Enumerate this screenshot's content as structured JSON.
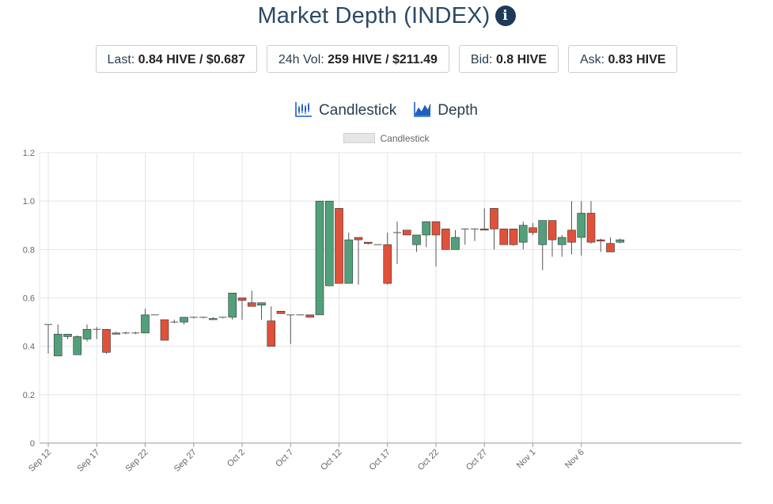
{
  "header": {
    "title": "Market Depth (INDEX)",
    "info_icon": "info-circle-icon"
  },
  "stats": [
    {
      "label": "Last: ",
      "value": "0.84 HIVE / $0.687"
    },
    {
      "label": "24h Vol: ",
      "value": "259 HIVE / $211.49"
    },
    {
      "label": "Bid: ",
      "value": "0.8 HIVE"
    },
    {
      "label": "Ask: ",
      "value": "0.83 HIVE"
    }
  ],
  "tabs": [
    {
      "label": "Candlestick",
      "icon": "candlestick-chart-icon"
    },
    {
      "label": "Depth",
      "icon": "depth-chart-icon"
    }
  ],
  "colors": {
    "up": "#52a07a",
    "down": "#e0513a",
    "grid": "#e5e5e5",
    "wick": "#555555"
  },
  "chart_data": {
    "type": "candlestick",
    "legend": [
      "Candlestick"
    ],
    "legend_position": "top-center",
    "ylim": [
      0,
      1.2
    ],
    "yticks": [
      "0",
      "0.2",
      "0.4",
      "0.6",
      "0.8",
      "1.0",
      "1.2"
    ],
    "xtick_labels": [
      "Sep 12",
      "Sep 17",
      "Sep 22",
      "Sep 27",
      "Oct 2",
      "Oct 7",
      "Oct 12",
      "Oct 17",
      "Oct 22",
      "Oct 27",
      "Nov 1",
      "Nov 6"
    ],
    "grid": true,
    "candles": [
      {
        "date": "Sep 12",
        "open": 0.49,
        "close": 0.49,
        "high": 0.49,
        "low": 0.37
      },
      {
        "date": "Sep 13",
        "open": 0.36,
        "close": 0.45,
        "high": 0.49,
        "low": 0.36
      },
      {
        "date": "Sep 14",
        "open": 0.44,
        "close": 0.45,
        "high": 0.45,
        "low": 0.43
      },
      {
        "date": "Sep 15",
        "open": 0.365,
        "close": 0.44,
        "high": 0.445,
        "low": 0.365
      },
      {
        "date": "Sep 16",
        "open": 0.43,
        "close": 0.47,
        "high": 0.49,
        "low": 0.42
      },
      {
        "date": "Sep 17",
        "open": 0.47,
        "close": 0.47,
        "high": 0.48,
        "low": 0.43
      },
      {
        "date": "Sep 18",
        "open": 0.47,
        "close": 0.375,
        "high": 0.47,
        "low": 0.37
      },
      {
        "date": "Sep 19",
        "open": 0.45,
        "close": 0.455,
        "high": 0.46,
        "low": 0.45
      },
      {
        "date": "Sep 20",
        "open": 0.455,
        "close": 0.455,
        "high": 0.46,
        "low": 0.45
      },
      {
        "date": "Sep 21",
        "open": 0.455,
        "close": 0.455,
        "high": 0.46,
        "low": 0.45
      },
      {
        "date": "Sep 22",
        "open": 0.455,
        "close": 0.53,
        "high": 0.555,
        "low": 0.455
      },
      {
        "date": "Sep 23",
        "open": 0.53,
        "close": 0.53,
        "high": 0.53,
        "low": 0.53
      },
      {
        "date": "Sep 24",
        "open": 0.51,
        "close": 0.425,
        "high": 0.51,
        "low": 0.425
      },
      {
        "date": "Sep 25",
        "open": 0.5,
        "close": 0.5,
        "high": 0.51,
        "low": 0.495
      },
      {
        "date": "Sep 26",
        "open": 0.5,
        "close": 0.52,
        "high": 0.52,
        "low": 0.49
      },
      {
        "date": "Sep 27",
        "open": 0.52,
        "close": 0.52,
        "high": 0.52,
        "low": 0.515
      },
      {
        "date": "Sep 28",
        "open": 0.52,
        "close": 0.52,
        "high": 0.52,
        "low": 0.515
      },
      {
        "date": "Sep 29",
        "open": 0.51,
        "close": 0.515,
        "high": 0.52,
        "low": 0.51
      },
      {
        "date": "Sep 30",
        "open": 0.52,
        "close": 0.52,
        "high": 0.52,
        "low": 0.515
      },
      {
        "date": "Oct 1",
        "open": 0.52,
        "close": 0.62,
        "high": 0.62,
        "low": 0.51
      },
      {
        "date": "Oct 2",
        "open": 0.6,
        "close": 0.59,
        "high": 0.6,
        "low": 0.51
      },
      {
        "date": "Oct 3",
        "open": 0.58,
        "close": 0.565,
        "high": 0.63,
        "low": 0.565
      },
      {
        "date": "Oct 4",
        "open": 0.57,
        "close": 0.58,
        "high": 0.58,
        "low": 0.51
      },
      {
        "date": "Oct 5",
        "open": 0.505,
        "close": 0.4,
        "high": 0.565,
        "low": 0.4
      },
      {
        "date": "Oct 6",
        "open": 0.545,
        "close": 0.535,
        "high": 0.545,
        "low": 0.535
      },
      {
        "date": "Oct 7",
        "open": 0.53,
        "close": 0.53,
        "high": 0.53,
        "low": 0.41
      },
      {
        "date": "Oct 8",
        "open": 0.53,
        "close": 0.53,
        "high": 0.53,
        "low": 0.53
      },
      {
        "date": "Oct 9",
        "open": 0.53,
        "close": 0.52,
        "high": 0.53,
        "low": 0.52
      },
      {
        "date": "Oct 10",
        "open": 0.53,
        "close": 1.0,
        "high": 1.0,
        "low": 0.53
      },
      {
        "date": "Oct 11",
        "open": 0.65,
        "close": 1.0,
        "high": 1.0,
        "low": 0.65
      },
      {
        "date": "Oct 12",
        "open": 0.97,
        "close": 0.66,
        "high": 0.97,
        "low": 0.66
      },
      {
        "date": "Oct 13",
        "open": 0.66,
        "close": 0.84,
        "high": 0.87,
        "low": 0.66
      },
      {
        "date": "Oct 14",
        "open": 0.85,
        "close": 0.84,
        "high": 0.85,
        "low": 0.655
      },
      {
        "date": "Oct 15",
        "open": 0.83,
        "close": 0.825,
        "high": 0.83,
        "low": 0.82
      },
      {
        "date": "Oct 16",
        "open": 0.82,
        "close": 0.82,
        "high": 0.82,
        "low": 0.82
      },
      {
        "date": "Oct 17",
        "open": 0.82,
        "close": 0.66,
        "high": 0.87,
        "low": 0.655
      },
      {
        "date": "Oct 18",
        "open": 0.87,
        "close": 0.87,
        "high": 0.915,
        "low": 0.74
      },
      {
        "date": "Oct 19",
        "open": 0.88,
        "close": 0.86,
        "high": 0.88,
        "low": 0.86
      },
      {
        "date": "Oct 20",
        "open": 0.82,
        "close": 0.86,
        "high": 0.86,
        "low": 0.79
      },
      {
        "date": "Oct 21",
        "open": 0.86,
        "close": 0.915,
        "high": 0.915,
        "low": 0.81
      },
      {
        "date": "Oct 22",
        "open": 0.915,
        "close": 0.86,
        "high": 0.915,
        "low": 0.73
      },
      {
        "date": "Oct 23",
        "open": 0.885,
        "close": 0.8,
        "high": 0.885,
        "low": 0.8
      },
      {
        "date": "Oct 24",
        "open": 0.8,
        "close": 0.85,
        "high": 0.88,
        "low": 0.8
      },
      {
        "date": "Oct 25",
        "open": 0.885,
        "close": 0.885,
        "high": 0.885,
        "low": 0.82
      },
      {
        "date": "Oct 26",
        "open": 0.885,
        "close": 0.885,
        "high": 0.885,
        "low": 0.835
      },
      {
        "date": "Oct 27",
        "open": 0.885,
        "close": 0.88,
        "high": 0.97,
        "low": 0.88
      },
      {
        "date": "Oct 28",
        "open": 0.97,
        "close": 0.885,
        "high": 0.97,
        "low": 0.8
      },
      {
        "date": "Oct 29",
        "open": 0.885,
        "close": 0.82,
        "high": 0.885,
        "low": 0.82
      },
      {
        "date": "Oct 30",
        "open": 0.885,
        "close": 0.82,
        "high": 0.885,
        "low": 0.815
      },
      {
        "date": "Oct 31",
        "open": 0.83,
        "close": 0.9,
        "high": 0.915,
        "low": 0.8
      },
      {
        "date": "Nov 1",
        "open": 0.89,
        "close": 0.87,
        "high": 0.91,
        "low": 0.86
      },
      {
        "date": "Nov 2",
        "open": 0.82,
        "close": 0.92,
        "high": 0.92,
        "low": 0.715
      },
      {
        "date": "Nov 3",
        "open": 0.92,
        "close": 0.84,
        "high": 0.92,
        "low": 0.77
      },
      {
        "date": "Nov 4",
        "open": 0.82,
        "close": 0.85,
        "high": 0.86,
        "low": 0.77
      },
      {
        "date": "Nov 5",
        "open": 0.88,
        "close": 0.83,
        "high": 1.0,
        "low": 0.78
      },
      {
        "date": "Nov 6",
        "open": 0.85,
        "close": 0.95,
        "high": 1.0,
        "low": 0.775
      },
      {
        "date": "Nov 7",
        "open": 0.95,
        "close": 0.83,
        "high": 1.0,
        "low": 0.825
      },
      {
        "date": "Nov 8",
        "open": 0.84,
        "close": 0.835,
        "high": 0.845,
        "low": 0.79
      },
      {
        "date": "Nov 9",
        "open": 0.825,
        "close": 0.79,
        "high": 0.85,
        "low": 0.79
      },
      {
        "date": "Nov 10",
        "open": 0.83,
        "close": 0.84,
        "high": 0.845,
        "low": 0.825
      }
    ]
  }
}
